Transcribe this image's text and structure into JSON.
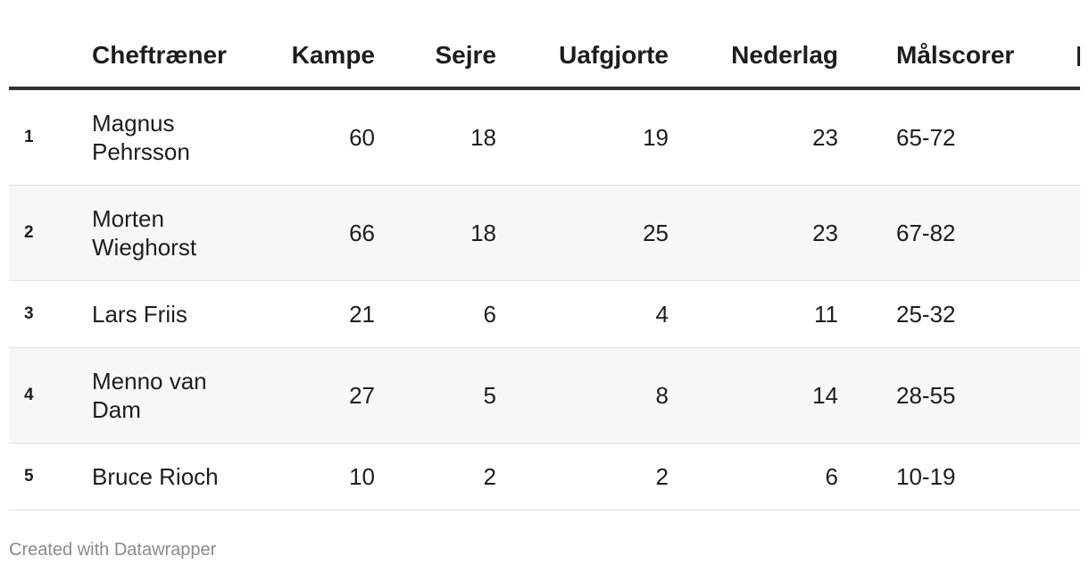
{
  "headers": {
    "index": "",
    "coach": "Cheftræner",
    "matches": "Kampe",
    "wins": "Sejre",
    "draws": "Uafgjorte",
    "losses": "Nederlag",
    "goals": "Målscorer"
  },
  "rows": [
    {
      "rank": "1",
      "coach": "Magnus Pehrsson",
      "matches": "60",
      "wins": "18",
      "draws": "19",
      "losses": "23",
      "goals": "65-72"
    },
    {
      "rank": "2",
      "coach": "Morten Wieghorst",
      "matches": "66",
      "wins": "18",
      "draws": "25",
      "losses": "23",
      "goals": "67-82"
    },
    {
      "rank": "3",
      "coach": "Lars Friis",
      "matches": "21",
      "wins": "6",
      "draws": "4",
      "losses": "11",
      "goals": "25-32"
    },
    {
      "rank": "4",
      "coach": "Menno van Dam",
      "matches": "27",
      "wins": "5",
      "draws": "8",
      "losses": "14",
      "goals": "28-55"
    },
    {
      "rank": "5",
      "coach": "Bruce Rioch",
      "matches": "10",
      "wins": "2",
      "draws": "2",
      "losses": "6",
      "goals": "10-19"
    }
  ],
  "footer": "Created with Datawrapper",
  "colors": {
    "rule": "#333333",
    "alt_row": "#f7f7f7",
    "footer": "#8a8a8a"
  }
}
